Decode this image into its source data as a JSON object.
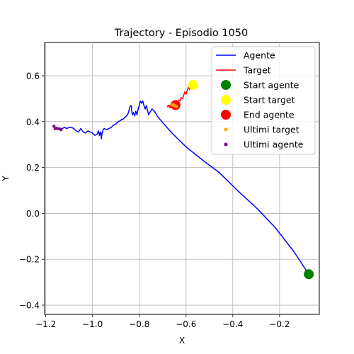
{
  "chart_data": {
    "type": "line",
    "title": "Trajectory - Episodio 1050",
    "xlabel": "X",
    "ylabel": "Y",
    "xlim": [
      -1.205,
      -0.03
    ],
    "ylim": [
      -0.44,
      0.745
    ],
    "grid": true,
    "legend_placement": "top-right",
    "xticks": [
      -1.2,
      -1.0,
      -0.8,
      -0.6,
      -0.4,
      -0.2
    ],
    "xtick_labels": [
      "−1.2",
      "−1.0",
      "−0.8",
      "−0.6",
      "−0.4",
      "−0.2"
    ],
    "yticks": [
      -0.4,
      -0.2,
      0.0,
      0.2,
      0.4,
      0.6
    ],
    "ytick_labels": [
      "−0.4",
      "−0.2",
      "0.0",
      "0.2",
      "0.4",
      "0.6"
    ],
    "series": [
      {
        "name": "Agente",
        "kind": "line",
        "color": "#0000ff",
        "x": [
          -0.075,
          -0.14,
          -0.22,
          -0.3,
          -0.38,
          -0.46,
          -0.52,
          -0.6,
          -0.66,
          -0.695,
          -0.72,
          -0.735,
          -0.745,
          -0.755,
          -0.76,
          -0.765,
          -0.77,
          -0.775,
          -0.78,
          -0.785,
          -0.79,
          -0.795,
          -0.8,
          -0.805,
          -0.81,
          -0.815,
          -0.82,
          -0.825,
          -0.83,
          -0.835,
          -0.84,
          -0.845,
          -0.85,
          -0.86,
          -0.87,
          -0.875,
          -0.88,
          -0.89,
          -0.9,
          -0.91,
          -0.92,
          -0.93,
          -0.94,
          -0.95,
          -0.955,
          -0.96,
          -0.962,
          -0.965,
          -0.968,
          -0.97,
          -0.975,
          -0.98,
          -0.99,
          -1.0,
          -1.01,
          -1.02,
          -1.03,
          -1.04,
          -1.05,
          -1.06,
          -1.07,
          -1.08,
          -1.09,
          -1.1,
          -1.11,
          -1.12,
          -1.13,
          -1.14,
          -1.15,
          -1.155,
          -1.16,
          -1.165
        ],
        "y": [
          -0.265,
          -0.165,
          -0.06,
          0.025,
          0.1,
          0.18,
          0.225,
          0.29,
          0.35,
          0.39,
          0.42,
          0.445,
          0.455,
          0.44,
          0.43,
          0.45,
          0.47,
          0.455,
          0.47,
          0.49,
          0.48,
          0.49,
          0.47,
          0.455,
          0.43,
          0.445,
          0.425,
          0.44,
          0.43,
          0.47,
          0.465,
          0.445,
          0.43,
          0.42,
          0.41,
          0.41,
          0.405,
          0.4,
          0.39,
          0.385,
          0.375,
          0.37,
          0.365,
          0.37,
          0.365,
          0.345,
          0.325,
          0.355,
          0.35,
          0.34,
          0.36,
          0.345,
          0.34,
          0.35,
          0.355,
          0.36,
          0.35,
          0.355,
          0.37,
          0.355,
          0.36,
          0.37,
          0.375,
          0.375,
          0.37,
          0.375,
          0.37,
          0.365,
          0.37,
          0.375,
          0.37,
          0.38
        ]
      },
      {
        "name": "Target",
        "kind": "line",
        "color": "#ff0000",
        "x": [
          -0.57,
          -0.575,
          -0.58,
          -0.585,
          -0.59,
          -0.595,
          -0.6,
          -0.605,
          -0.61,
          -0.615,
          -0.62,
          -0.625,
          -0.63,
          -0.635,
          -0.64,
          -0.645,
          -0.65,
          -0.655,
          -0.66,
          -0.665,
          -0.67,
          -0.675,
          -0.68,
          -0.675,
          -0.67,
          -0.665,
          -0.66,
          -0.655,
          -0.65
        ],
        "y": [
          0.56,
          0.545,
          0.555,
          0.54,
          0.55,
          0.535,
          0.52,
          0.53,
          0.515,
          0.5,
          0.505,
          0.49,
          0.495,
          0.48,
          0.485,
          0.47,
          0.478,
          0.465,
          0.475,
          0.46,
          0.468,
          0.472,
          0.465,
          0.47,
          0.462,
          0.475,
          0.468,
          0.48,
          0.472
        ]
      },
      {
        "name": "Start agente",
        "kind": "marker",
        "color": "#008000",
        "x": [
          -0.075
        ],
        "y": [
          -0.265
        ]
      },
      {
        "name": "Start target",
        "kind": "marker",
        "color": "#ffff00",
        "x": [
          -0.57
        ],
        "y": [
          0.56
        ]
      },
      {
        "name": "End agente",
        "kind": "marker",
        "color": "#ff0000",
        "x": [
          -0.645
        ],
        "y": [
          0.472
        ]
      },
      {
        "name": "Ultimi target",
        "kind": "scatter",
        "color": "#ffa500",
        "x": [
          -0.65,
          -0.655,
          -0.645,
          -0.66,
          -0.64
        ],
        "y": [
          0.47,
          0.475,
          0.468,
          0.472,
          0.465
        ]
      },
      {
        "name": "Ultimi agente",
        "kind": "scatter",
        "color": "#800080",
        "x": [
          -1.165,
          -1.16,
          -1.15,
          -1.14,
          -1.135
        ],
        "y": [
          0.38,
          0.37,
          0.37,
          0.368,
          0.365
        ]
      }
    ]
  }
}
